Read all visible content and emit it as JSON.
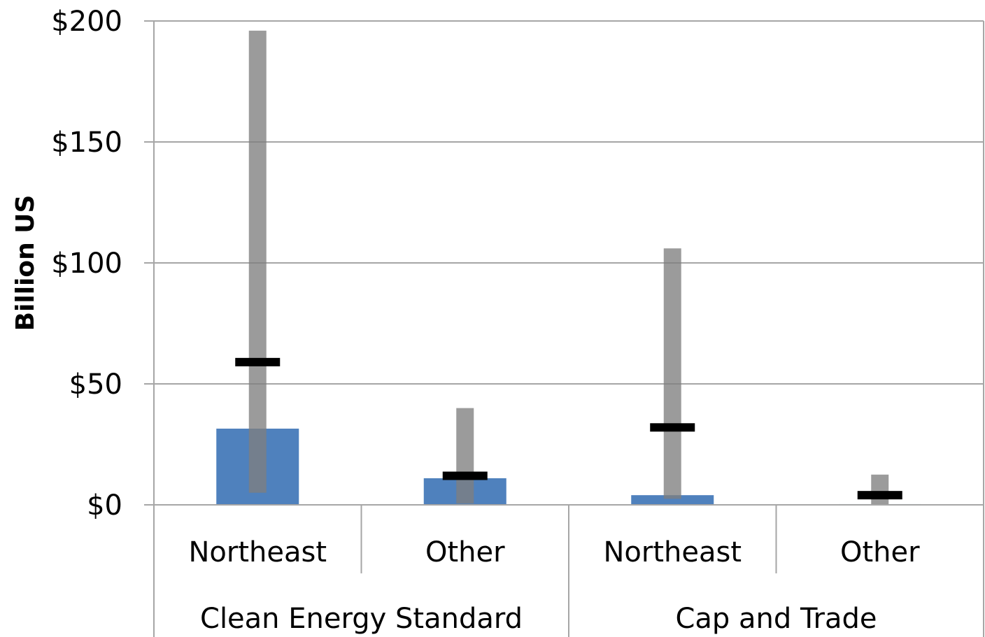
{
  "chart_data": {
    "type": "bar",
    "ylabel": "Billion US",
    "ylim": [
      0,
      200
    ],
    "yticks": [
      {
        "value": 0,
        "label": "$0"
      },
      {
        "value": 50,
        "label": "$50"
      },
      {
        "value": 100,
        "label": "$100"
      },
      {
        "value": 150,
        "label": "$150"
      },
      {
        "value": 200,
        "label": "$200"
      }
    ],
    "grid": true,
    "groups": [
      {
        "label": "Clean Energy Standard",
        "categories": [
          "Northeast",
          "Other"
        ]
      },
      {
        "label": "Cap and Trade",
        "categories": [
          "Northeast",
          "Other"
        ]
      }
    ],
    "categories": [
      "Northeast",
      "Other",
      "Northeast",
      "Other"
    ],
    "bar_values": [
      31.5,
      11,
      4,
      0.3
    ],
    "range_low": [
      5,
      0.5,
      2.5,
      0
    ],
    "range_high": [
      196,
      40,
      106,
      12.5
    ],
    "markers": [
      59,
      12,
      32,
      4
    ],
    "colors": {
      "bar": "#4f81bd",
      "range": "#7f7f7f",
      "marker": "#000000",
      "grid": "#a6a6a6"
    }
  }
}
